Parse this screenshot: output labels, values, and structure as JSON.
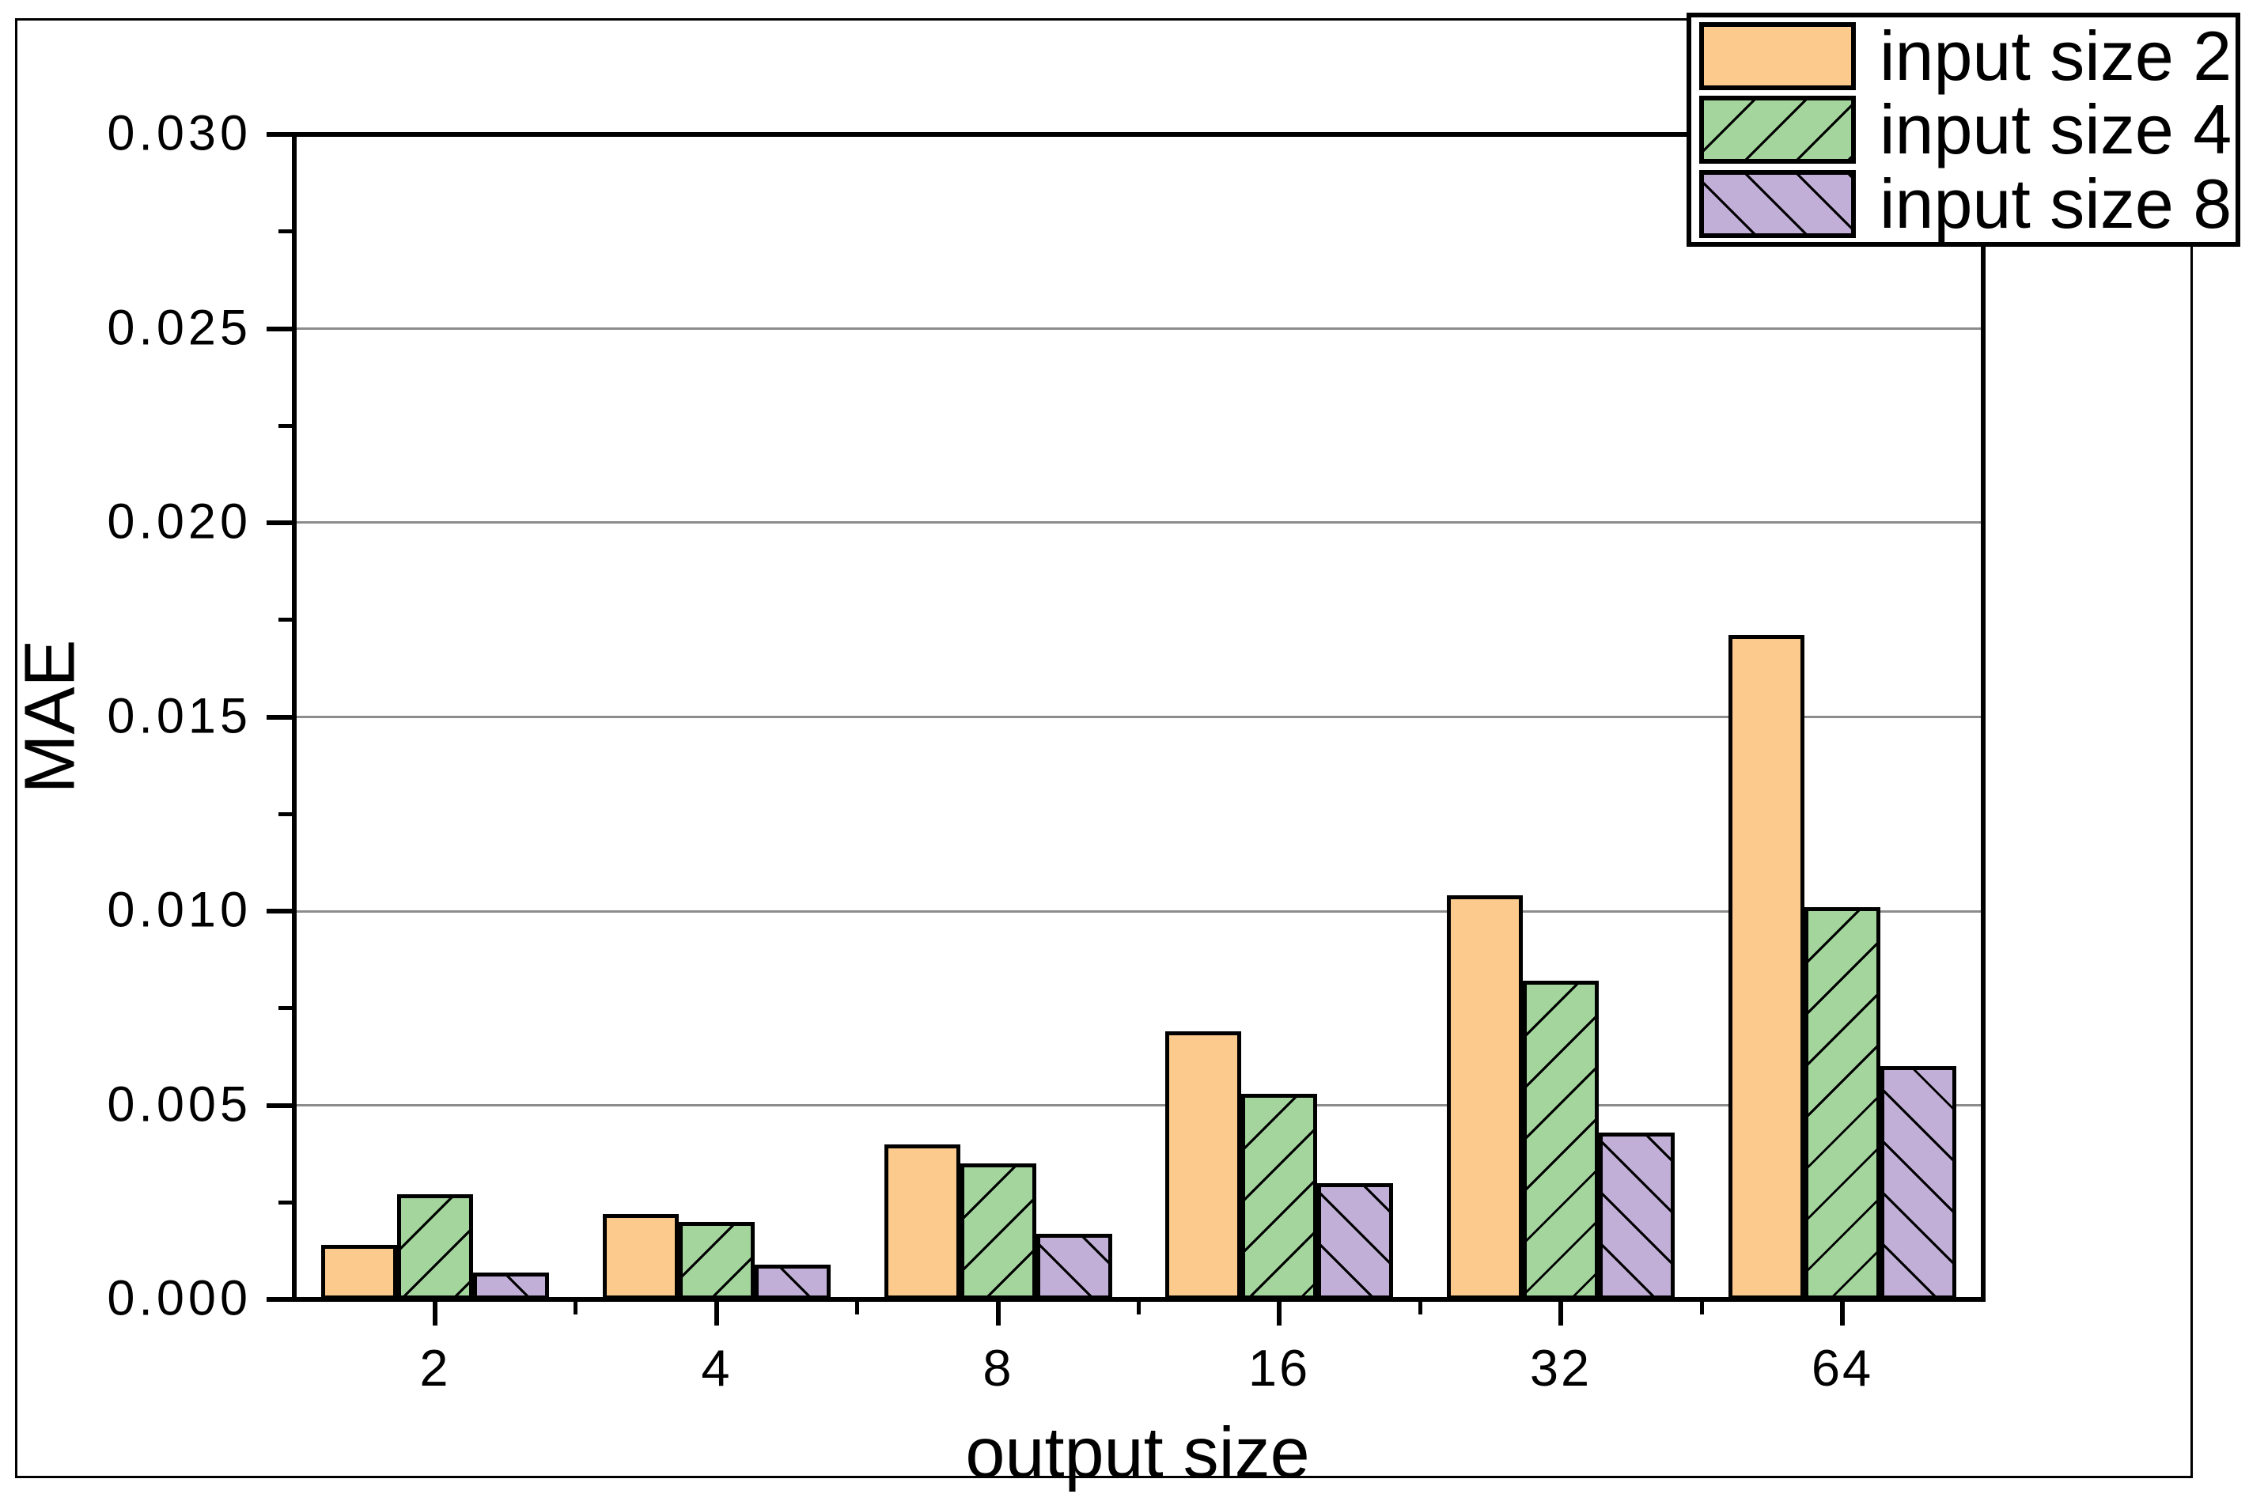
{
  "chart_data": {
    "type": "bar",
    "title": "",
    "xlabel": "output size",
    "ylabel": "MAE",
    "categories": [
      "2",
      "4",
      "8",
      "16",
      "32",
      "64"
    ],
    "series": [
      {
        "name": "input size 2",
        "color": "#FBCA8C",
        "hatch": "none",
        "values": [
          0.0014,
          0.0022,
          0.004,
          0.0069,
          0.0104,
          0.0171
        ]
      },
      {
        "name": "input size 4",
        "color": "#A3D59D",
        "hatch": "/",
        "values": [
          0.0027,
          0.002,
          0.0035,
          0.0053,
          0.0082,
          0.0101
        ]
      },
      {
        "name": "input size 8",
        "color": "#C2AFD8",
        "hatch": "\\",
        "values": [
          0.0007,
          0.0009,
          0.0017,
          0.003,
          0.0043,
          0.006
        ]
      }
    ],
    "ylim": [
      0,
      0.03
    ],
    "ytick_step": 0.005,
    "ytick_minor_step": 0.0025,
    "ytick_labels": [
      "0.000",
      "0.005",
      "0.010",
      "0.015",
      "0.020",
      "0.025",
      "0.030"
    ],
    "grid": "horizontal-major",
    "grid_color": "#8c8c8c",
    "edge_color": "#000000",
    "background_color": "#ffffff",
    "legend_position": "top-right"
  }
}
